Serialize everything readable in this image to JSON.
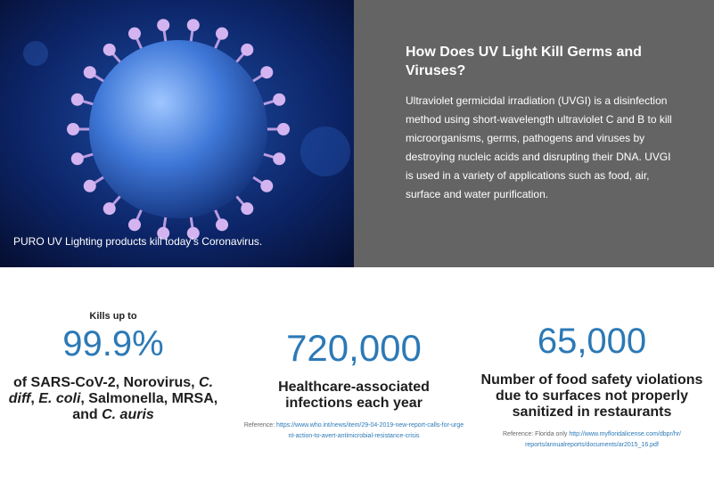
{
  "hero": {
    "caption": "PURO UV Lighting products kill today’s Coronavirus.",
    "heading": "How Does UV Light Kill Germs and Viruses?",
    "body": "Ultraviolet germicidal irradiation (UVGI) is a disinfection method using short-wavelength ultraviolet C and B to kill microorganisms, germs, pathogens and viruses by destroying nucleic acids and disrupting their DNA. UVGI is used in a variety of applications such as food, air, surface and water purification."
  },
  "stats": [
    {
      "lead": "Kills up to",
      "figure": "99.9%",
      "description": [
        {
          "text": "of SARS-CoV-2, Norovirus, ",
          "italic": false
        },
        {
          "text": "C. diff",
          "italic": true
        },
        {
          "text": ", ",
          "italic": false
        },
        {
          "text": "E. coli",
          "italic": true
        },
        {
          "text": ", Salmonella, MRSA, and ",
          "italic": false
        },
        {
          "text": "C. auris",
          "italic": true
        }
      ]
    },
    {
      "figure": "720,000",
      "description": [
        {
          "text": "Healthcare-associated infections each year",
          "italic": false
        }
      ],
      "reference": {
        "label": "Reference:",
        "link": "https://www.who.int/news/item/29-04-2019-new-report-calls-for-urgent-action-to-avert-antimicrobial-resistance-crisis"
      }
    },
    {
      "figure": "65,000",
      "description": [
        {
          "text": "Number of food safety violations due to surfaces not properly sanitized in restaurants",
          "italic": false
        }
      ],
      "reference": {
        "label": "Reference: Florida only",
        "link": "http://www.myfloridalicense.com/dbpr/hr/reports/annualreports/documents/ar2015_16.pdf"
      }
    }
  ]
}
